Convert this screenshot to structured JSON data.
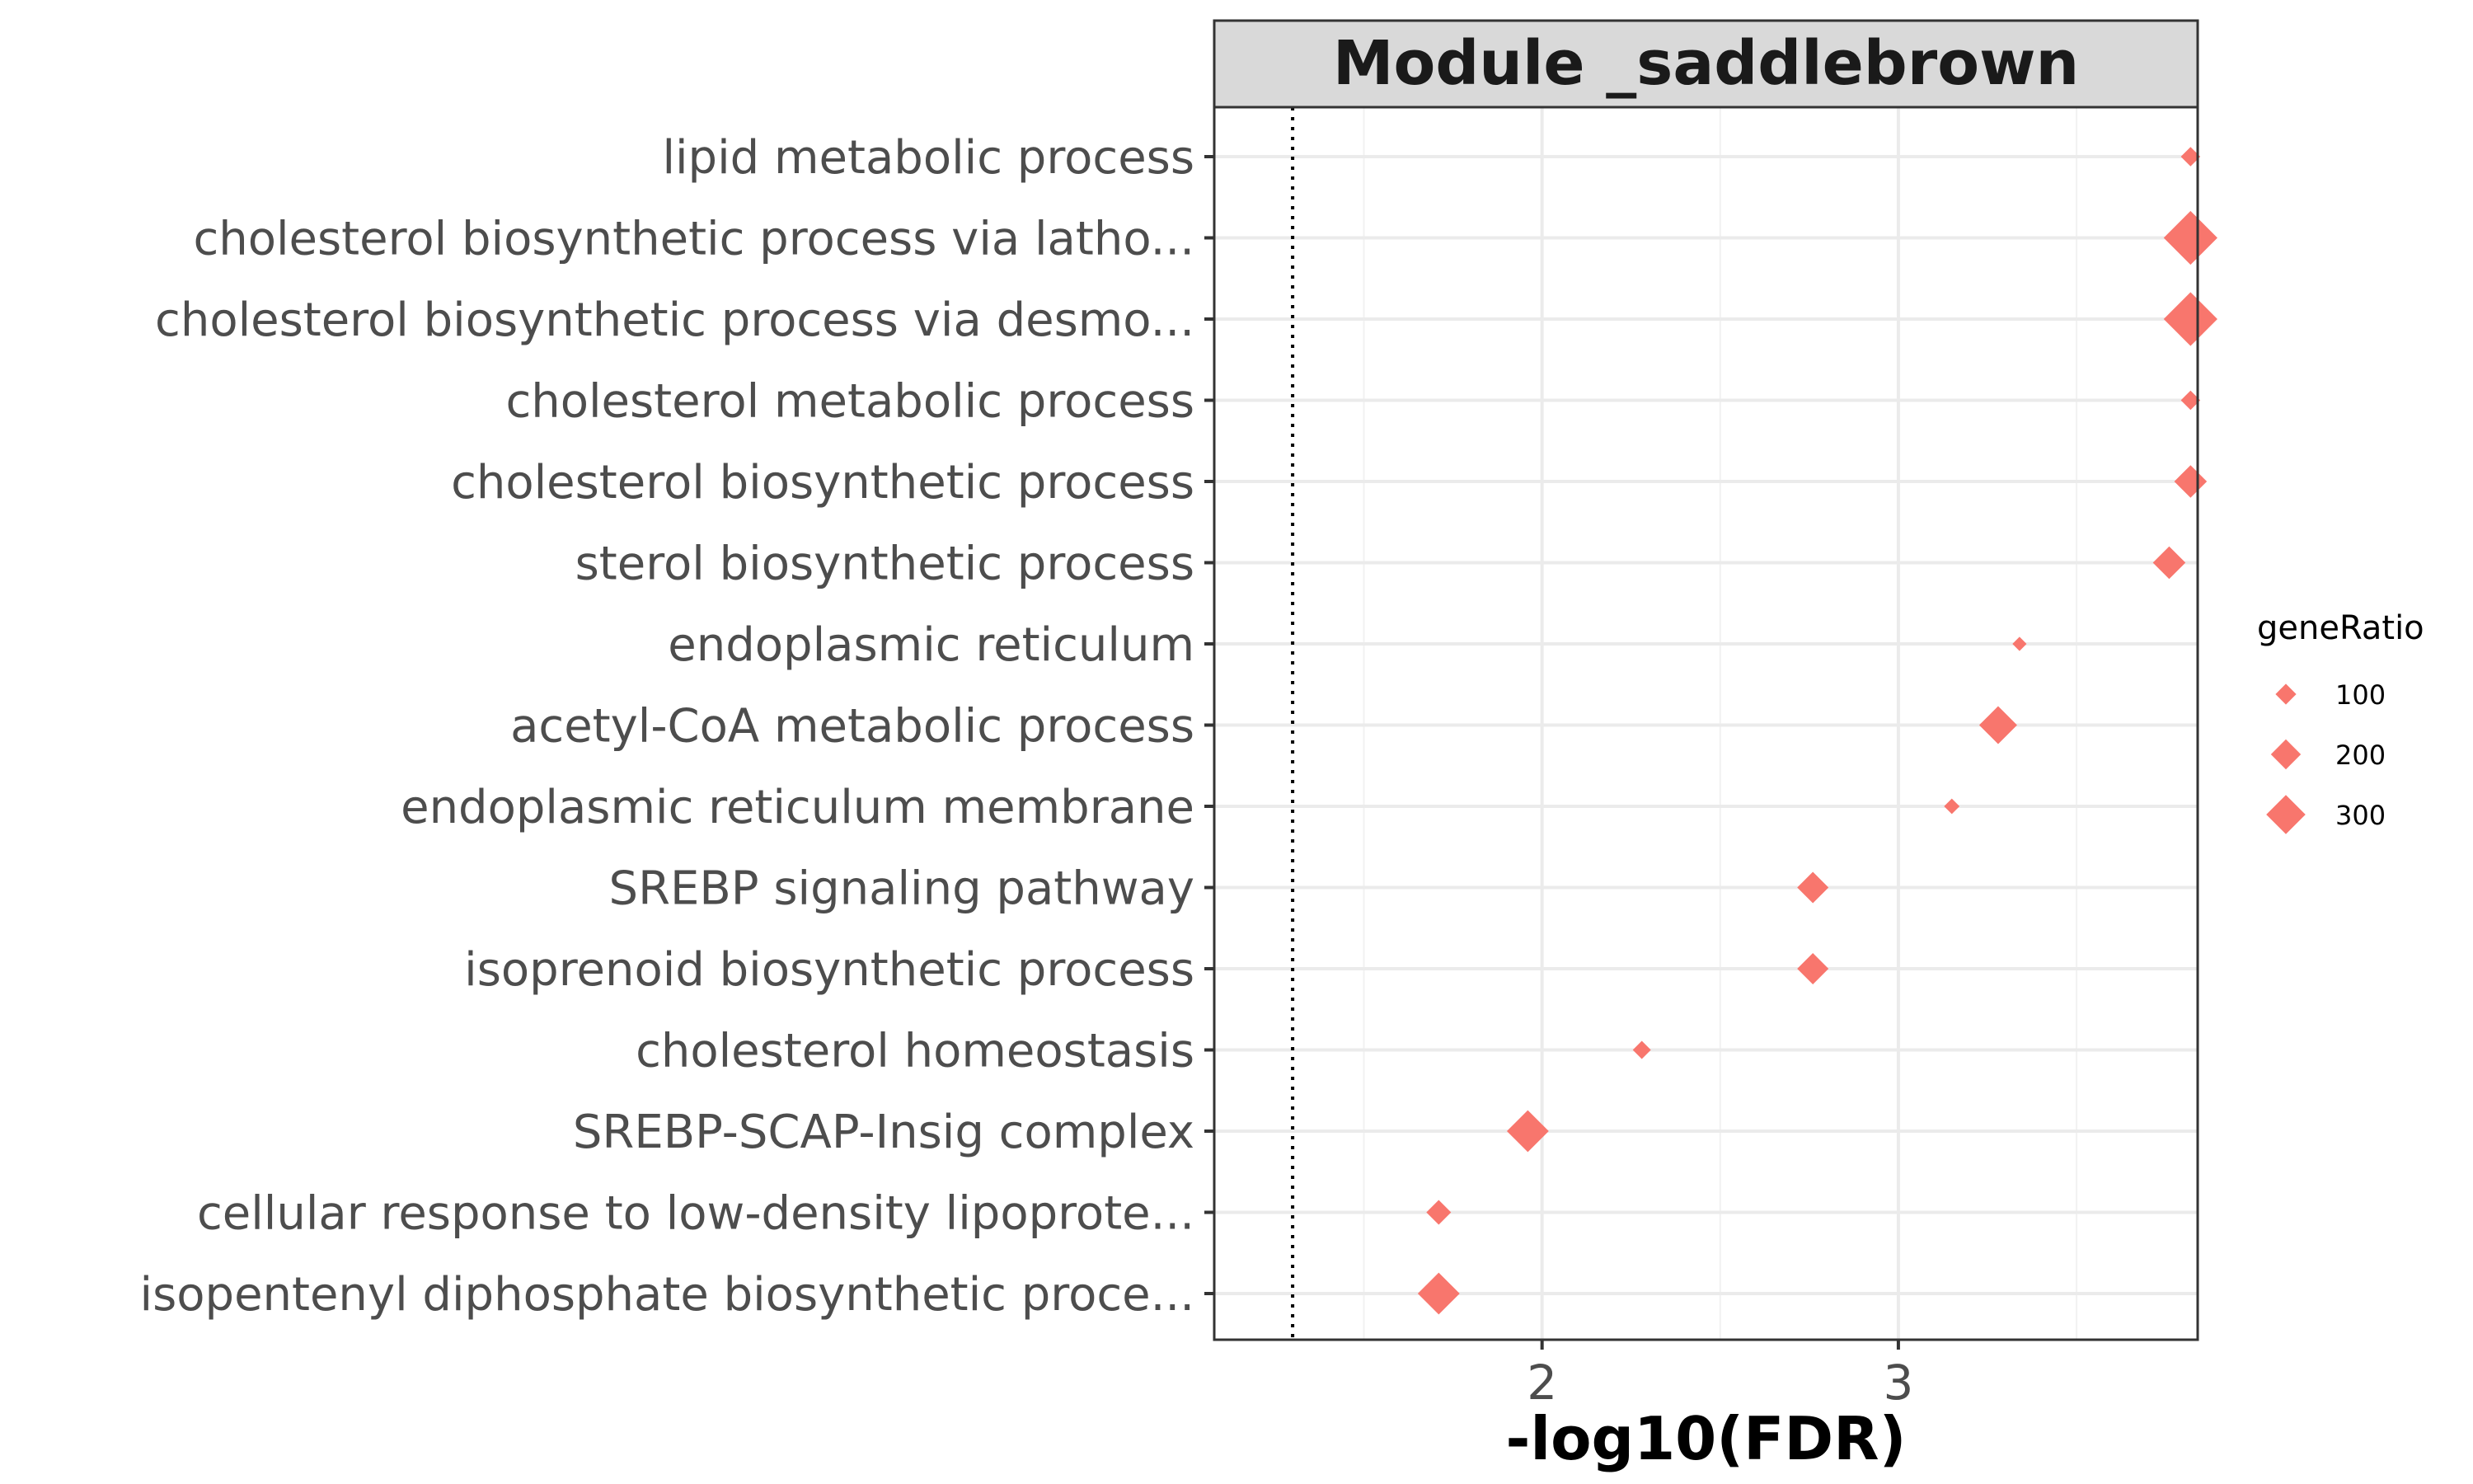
{
  "chart_data": {
    "type": "scatter",
    "title": "Module _saddlebrown",
    "xlabel": "-log10(FDR)",
    "ylabel": "",
    "xlim": [
      1.08,
      3.84
    ],
    "x_ticks": [
      2,
      3
    ],
    "x_tick_labels": [
      "2",
      "3"
    ],
    "reference_line_x": 1.3,
    "marker": "diamond",
    "color": "#F8766D",
    "grid": true,
    "legend_position": "right",
    "legend": {
      "title": "geneRatio",
      "entries": [
        {
          "label": "100",
          "value": 100
        },
        {
          "label": "200",
          "value": 200
        },
        {
          "label": "300",
          "value": 300
        }
      ]
    },
    "categories": [
      "lipid metabolic process",
      "cholesterol biosynthetic process via latho...",
      "cholesterol biosynthetic process via desmo...",
      "cholesterol metabolic process",
      "cholesterol biosynthetic process",
      "sterol biosynthetic process",
      "endoplasmic reticulum",
      "acetyl-CoA metabolic process",
      "endoplasmic reticulum membrane",
      "SREBP signaling pathway",
      "isoprenoid biosynthetic process",
      "cholesterol homeostasis",
      "SREBP-SCAP-Insig complex",
      "cellular response to low-density lipoprote...",
      "isopentenyl diphosphate biosynthetic proce..."
    ],
    "x": [
      3.82,
      3.82,
      3.82,
      3.82,
      3.82,
      3.76,
      3.34,
      3.28,
      3.15,
      2.76,
      2.76,
      2.28,
      1.96,
      1.71,
      1.71
    ],
    "sizes": [
      60,
      320,
      320,
      60,
      160,
      160,
      20,
      200,
      30,
      150,
      150,
      50,
      230,
      100,
      230
    ]
  }
}
